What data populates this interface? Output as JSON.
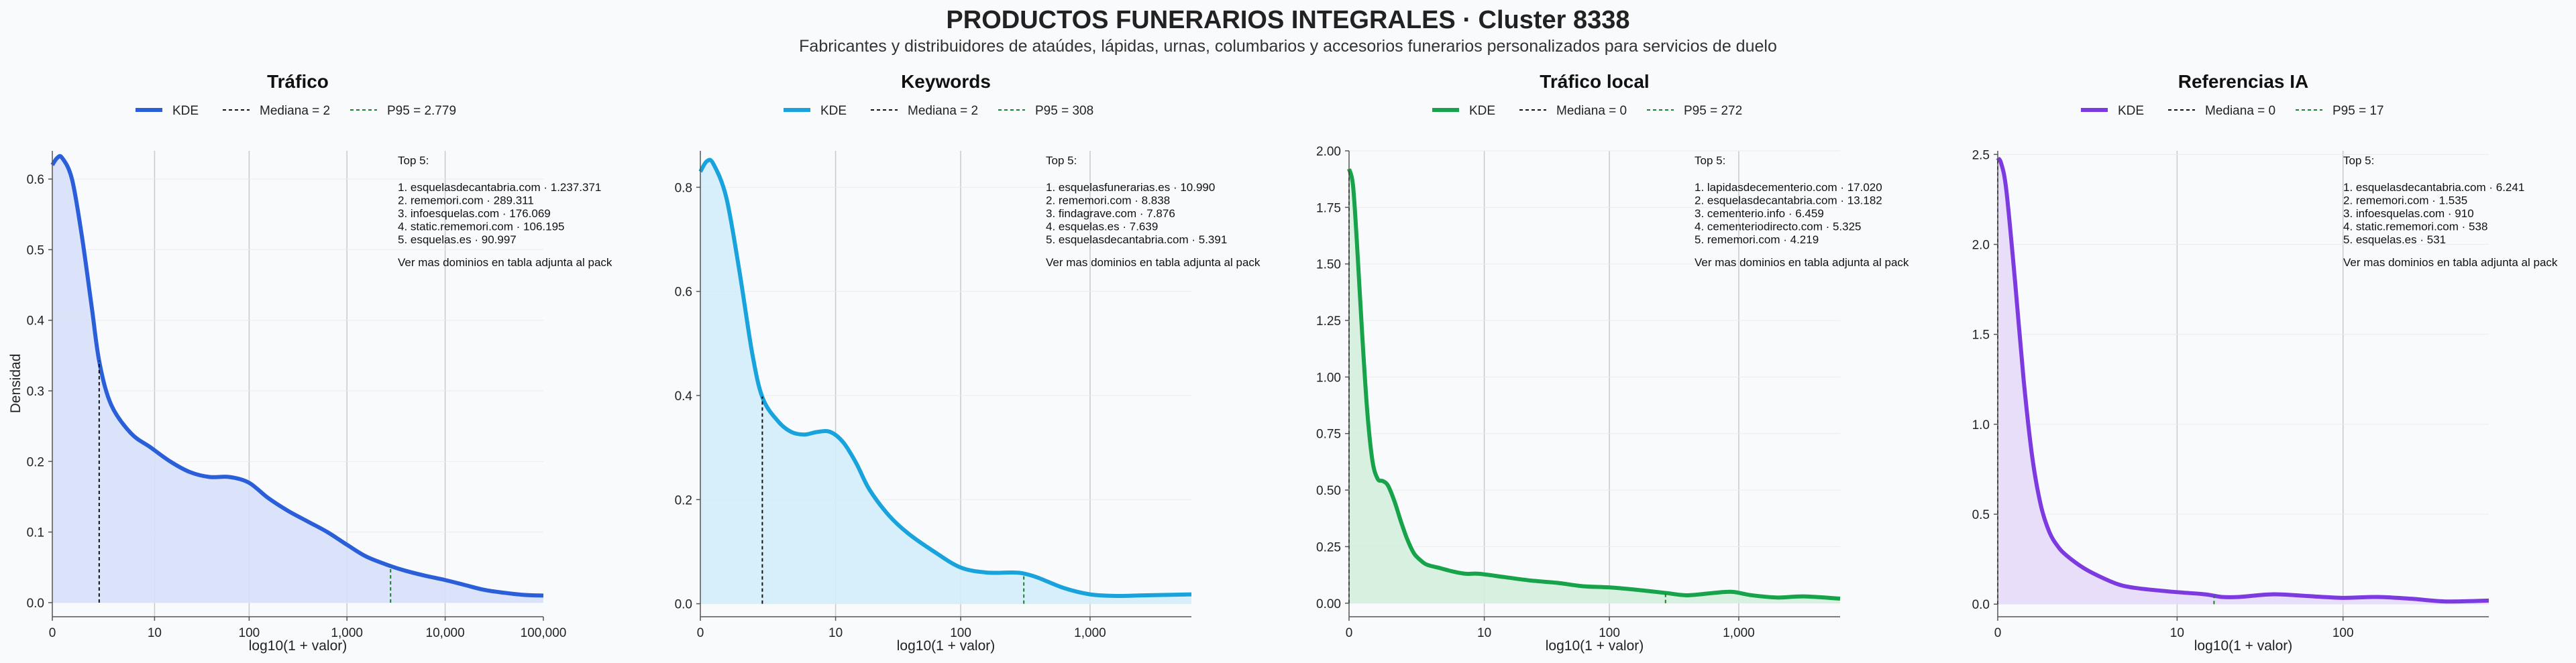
{
  "header": {
    "title": "PRODUCTOS FUNERARIOS INTEGRALES · Cluster 8338",
    "subtitle": "Fabricantes y distribuidores de ataúdes, lápidas, urnas, columbarios y accesorios funerarios personalizados para servicios de duelo"
  },
  "chart_data": [
    {
      "type": "area",
      "title": "Tráfico",
      "xlabel": "log10(1 + valor)",
      "ylabel": "Densidad",
      "color": "#2b5fd9",
      "fill": "#d6e0f8",
      "xlim": [
        0,
        5.0
      ],
      "ylim": [
        -0.02,
        0.64
      ],
      "xticks": [
        {
          "v": 0,
          "label": "0"
        },
        {
          "v": 1.041,
          "label": "10"
        },
        {
          "v": 2.004,
          "label": "100"
        },
        {
          "v": 3.0,
          "label": "1,000"
        },
        {
          "v": 4.0,
          "label": "10,000"
        },
        {
          "v": 5.0,
          "label": "100,000"
        }
      ],
      "yticks": [
        {
          "v": 0.0,
          "label": "0.0"
        },
        {
          "v": 0.1,
          "label": "0.1"
        },
        {
          "v": 0.2,
          "label": "0.2"
        },
        {
          "v": 0.3,
          "label": "0.3"
        },
        {
          "v": 0.4,
          "label": "0.4"
        },
        {
          "v": 0.5,
          "label": "0.5"
        },
        {
          "v": 0.6,
          "label": "0.6"
        }
      ],
      "x": [
        0,
        0.05,
        0.1,
        0.2,
        0.3,
        0.4,
        0.48,
        0.6,
        0.8,
        1.0,
        1.2,
        1.4,
        1.6,
        1.8,
        2.0,
        2.2,
        2.4,
        2.6,
        2.8,
        3.0,
        3.2,
        3.44,
        3.6,
        3.8,
        4.0,
        4.2,
        4.4,
        4.6,
        4.8,
        5.0
      ],
      "y": [
        0.62,
        0.63,
        0.63,
        0.6,
        0.52,
        0.42,
        0.34,
        0.28,
        0.24,
        0.22,
        0.2,
        0.185,
        0.178,
        0.178,
        0.17,
        0.148,
        0.13,
        0.115,
        0.1,
        0.082,
        0.065,
        0.052,
        0.045,
        0.038,
        0.032,
        0.025,
        0.018,
        0.014,
        0.011,
        0.01
      ],
      "legend": {
        "kde": "KDE",
        "median": "Mediana = 2",
        "p95": "P95 = 2.779"
      },
      "median_x": 0.4771,
      "p95_x": 3.4441,
      "top": {
        "heading": "Top 5:",
        "items": [
          "1. esquelasdecantabria.com · 1.237.371",
          "2. rememori.com · 289.311",
          "3. infoesquelas.com · 176.069",
          "4. static.rememori.com · 106.195",
          "5. esquelas.es · 90.997"
        ],
        "footer": "Ver mas dominios en tabla adjunta al pack"
      }
    },
    {
      "type": "area",
      "title": "Keywords",
      "xlabel": "log10(1 + valor)",
      "ylabel": "",
      "color": "#19a3dd",
      "fill": "#d2edfa",
      "xlim": [
        0,
        3.78
      ],
      "ylim": [
        -0.025,
        0.87
      ],
      "xticks": [
        {
          "v": 0,
          "label": "0"
        },
        {
          "v": 1.041,
          "label": "10"
        },
        {
          "v": 2.004,
          "label": "100"
        },
        {
          "v": 3.0,
          "label": "1,000"
        }
      ],
      "yticks": [
        {
          "v": 0.0,
          "label": "0.0"
        },
        {
          "v": 0.2,
          "label": "0.2"
        },
        {
          "v": 0.4,
          "label": "0.4"
        },
        {
          "v": 0.6,
          "label": "0.6"
        },
        {
          "v": 0.8,
          "label": "0.8"
        }
      ],
      "x": [
        0,
        0.05,
        0.1,
        0.2,
        0.3,
        0.4,
        0.48,
        0.6,
        0.7,
        0.8,
        0.9,
        1.0,
        1.1,
        1.2,
        1.3,
        1.45,
        1.6,
        1.8,
        2.0,
        2.2,
        2.4,
        2.49,
        2.6,
        2.8,
        3.0,
        3.2,
        3.4,
        3.6,
        3.78
      ],
      "y": [
        0.83,
        0.85,
        0.845,
        0.78,
        0.64,
        0.48,
        0.395,
        0.35,
        0.33,
        0.325,
        0.33,
        0.33,
        0.31,
        0.27,
        0.22,
        0.17,
        0.135,
        0.1,
        0.07,
        0.06,
        0.06,
        0.058,
        0.05,
        0.03,
        0.018,
        0.015,
        0.016,
        0.017,
        0.018
      ],
      "legend": {
        "kde": "KDE",
        "median": "Mediana = 2",
        "p95": "P95 = 308"
      },
      "median_x": 0.4771,
      "p95_x": 2.49,
      "top": {
        "heading": "Top 5:",
        "items": [
          "1. esquelasfunerarias.es · 10.990",
          "2. rememori.com · 8.838",
          "3. findagrave.com · 7.876",
          "4. esquelas.es · 7.639",
          "5. esquelasdecantabria.com · 5.391"
        ],
        "footer": "Ver mas dominios en tabla adjunta al pack"
      }
    },
    {
      "type": "area",
      "title": "Tráfico local",
      "xlabel": "log10(1 + valor)",
      "ylabel": "",
      "color": "#16a34a",
      "fill": "#d3eedd",
      "xlim": [
        0,
        3.78
      ],
      "ylim": [
        -0.06,
        2.0
      ],
      "xticks": [
        {
          "v": 0,
          "label": "0"
        },
        {
          "v": 1.041,
          "label": "10"
        },
        {
          "v": 2.004,
          "label": "100"
        },
        {
          "v": 3.0,
          "label": "1,000"
        }
      ],
      "yticks": [
        {
          "v": 0.0,
          "label": "0.00"
        },
        {
          "v": 0.25,
          "label": "0.25"
        },
        {
          "v": 0.5,
          "label": "0.50"
        },
        {
          "v": 0.75,
          "label": "0.75"
        },
        {
          "v": 1.0,
          "label": "1.00"
        },
        {
          "v": 1.25,
          "label": "1.25"
        },
        {
          "v": 1.5,
          "label": "1.50"
        },
        {
          "v": 1.75,
          "label": "1.75"
        },
        {
          "v": 2.0,
          "label": "2.00"
        }
      ],
      "x": [
        0,
        0.03,
        0.06,
        0.1,
        0.14,
        0.18,
        0.22,
        0.26,
        0.3,
        0.35,
        0.4,
        0.45,
        0.5,
        0.55,
        0.6,
        0.7,
        0.8,
        0.9,
        1.0,
        1.2,
        1.4,
        1.6,
        1.8,
        2.0,
        2.2,
        2.44,
        2.6,
        2.8,
        2.95,
        3.1,
        3.3,
        3.5,
        3.78
      ],
      "y": [
        1.92,
        1.85,
        1.6,
        1.2,
        0.85,
        0.63,
        0.55,
        0.54,
        0.52,
        0.45,
        0.36,
        0.28,
        0.22,
        0.19,
        0.17,
        0.155,
        0.14,
        0.13,
        0.13,
        0.115,
        0.1,
        0.09,
        0.075,
        0.07,
        0.06,
        0.045,
        0.035,
        0.045,
        0.05,
        0.035,
        0.025,
        0.03,
        0.02
      ],
      "legend": {
        "kde": "KDE",
        "median": "Mediana = 0",
        "p95": "P95 = 272"
      },
      "median_x": 0.0,
      "p95_x": 2.4362,
      "top": {
        "heading": "Top 5:",
        "items": [
          "1. lapidasdecementerio.com · 17.020",
          "2. esquelasdecantabria.com · 13.182",
          "3. cementerio.info · 6.459",
          "4. cementeriodirecto.com · 5.325",
          "5. rememori.com · 4.219"
        ],
        "footer": "Ver mas dominios en tabla adjunta al pack"
      }
    },
    {
      "type": "area",
      "title": "Referencias IA",
      "xlabel": "log10(1 + valor)",
      "ylabel": "",
      "color": "#7c3ae0",
      "fill": "#e6dafa",
      "xlim": [
        0,
        2.85
      ],
      "ylim": [
        -0.07,
        2.52
      ],
      "xticks": [
        {
          "v": 0,
          "label": "0"
        },
        {
          "v": 1.041,
          "label": "10"
        },
        {
          "v": 2.004,
          "label": "100"
        }
      ],
      "yticks": [
        {
          "v": 0.0,
          "label": "0.0"
        },
        {
          "v": 0.5,
          "label": "0.5"
        },
        {
          "v": 1.0,
          "label": "1.0"
        },
        {
          "v": 1.5,
          "label": "1.5"
        },
        {
          "v": 2.0,
          "label": "2.0"
        },
        {
          "v": 2.5,
          "label": "2.5"
        }
      ],
      "x": [
        0,
        0.02,
        0.05,
        0.1,
        0.15,
        0.2,
        0.25,
        0.3,
        0.35,
        0.4,
        0.5,
        0.6,
        0.7,
        0.8,
        1.0,
        1.2,
        1.3,
        1.4,
        1.6,
        1.8,
        2.0,
        2.2,
        2.4,
        2.6,
        2.85
      ],
      "y": [
        2.48,
        2.45,
        2.3,
        1.8,
        1.25,
        0.82,
        0.55,
        0.4,
        0.32,
        0.27,
        0.2,
        0.15,
        0.11,
        0.09,
        0.07,
        0.055,
        0.04,
        0.04,
        0.055,
        0.045,
        0.035,
        0.04,
        0.03,
        0.015,
        0.02
      ],
      "legend": {
        "kde": "KDE",
        "median": "Mediana = 0",
        "p95": "P95 = 17"
      },
      "median_x": 0.0,
      "p95_x": 1.2553,
      "top": {
        "heading": "Top 5:",
        "items": [
          "1. esquelasdecantabria.com · 6.241",
          "2. rememori.com · 1.535",
          "3. infoesquelas.com · 910",
          "4. static.rememori.com · 538",
          "5. esquelas.es · 531"
        ],
        "footer": "Ver mas dominios en tabla adjunta al pack"
      }
    }
  ]
}
